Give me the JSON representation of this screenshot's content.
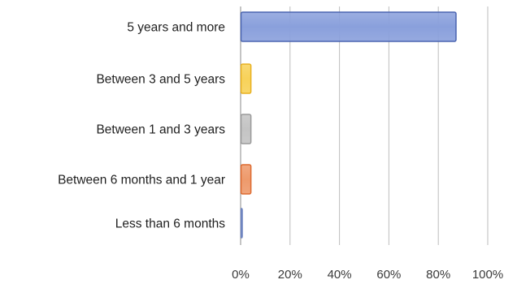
{
  "chart_data": {
    "type": "bar",
    "orientation": "horizontal",
    "categories": [
      "5 years and more",
      "Between 3  and 5 years",
      "Between 1 and 3 years",
      "Between 6 months and 1 year",
      "Less than 6 months"
    ],
    "values": [
      87,
      4,
      4,
      4,
      0.5
    ],
    "bar_colors": [
      "#8aa0dc",
      "#f8d25a",
      "#c4c4c4",
      "#ee9a6c",
      "#9eaed8"
    ],
    "bar_edge_colors": [
      "#4a64b0",
      "#e8b020",
      "#9a9a9a",
      "#dd6a30",
      "#6e84c0"
    ],
    "xlim": [
      0,
      100
    ],
    "xticks": [
      0,
      20,
      40,
      60,
      80,
      100
    ],
    "xtick_labels": [
      "0%",
      "20%",
      "40%",
      "60%",
      "80%",
      "100%"
    ],
    "grid": "vertical",
    "title": "",
    "xlabel": "",
    "ylabel": ""
  }
}
